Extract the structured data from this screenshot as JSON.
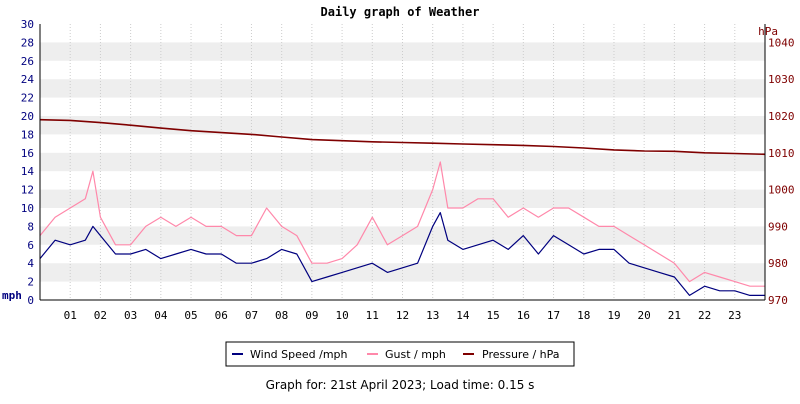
{
  "chart_data": {
    "type": "line",
    "title": "Daily graph of Weather",
    "footer": "Graph for: 21st April 2023; Load time: 0.15 s",
    "colors": {
      "wind": "#00007f",
      "gust": "#ff88aa",
      "pressure": "#7f0000",
      "grid_band": "#eeeeee",
      "grid_line": "#cccccc",
      "left_axis_text": "#00007f",
      "right_axis_text": "#7f0000"
    },
    "left_axis": {
      "label": "mph",
      "ylim": [
        0,
        30
      ],
      "ticks": [
        "0",
        "2",
        "4",
        "6",
        "8",
        "10",
        "12",
        "14",
        "16",
        "18",
        "20",
        "22",
        "24",
        "26",
        "28",
        "30"
      ]
    },
    "right_axis": {
      "label": "hPa",
      "ylim": [
        970,
        1045
      ],
      "ticks": [
        "970",
        "980",
        "990",
        "1000",
        "1010",
        "1020",
        "1030",
        "1040"
      ]
    },
    "x_axis": {
      "xlim": [
        0,
        24
      ],
      "ticks": [
        "01",
        "02",
        "03",
        "04",
        "05",
        "06",
        "07",
        "08",
        "09",
        "10",
        "11",
        "12",
        "13",
        "14",
        "15",
        "16",
        "17",
        "18",
        "19",
        "20",
        "21",
        "22",
        "23"
      ]
    },
    "grid": true,
    "legend_placement": "bottom-center",
    "series": [
      {
        "name": "Wind Speed /mph",
        "axis": "left",
        "color": "#00007f",
        "x": [
          0,
          0.5,
          1,
          1.5,
          1.75,
          2,
          2.5,
          3,
          3.5,
          4,
          4.5,
          5,
          5.5,
          6,
          6.5,
          7,
          7.5,
          8,
          8.5,
          9,
          9.5,
          10,
          10.5,
          11,
          11.5,
          12,
          12.5,
          13,
          13.25,
          13.5,
          14,
          14.5,
          15,
          15.5,
          16,
          16.5,
          17,
          17.5,
          18,
          18.5,
          19,
          19.5,
          20,
          20.5,
          21,
          21.5,
          22,
          22.5,
          23,
          23.5,
          24
        ],
        "values": [
          4.5,
          6.5,
          6,
          6.5,
          8,
          7,
          5,
          5,
          5.5,
          4.5,
          5,
          5.5,
          5,
          5,
          4,
          4,
          4.5,
          5.5,
          5,
          2,
          2.5,
          3,
          3.5,
          4,
          3,
          3.5,
          4,
          8,
          9.5,
          6.5,
          5.5,
          6,
          6.5,
          5.5,
          7,
          5,
          7,
          6,
          5,
          5.5,
          5.5,
          4,
          3.5,
          3,
          2.5,
          0.5,
          1.5,
          1,
          1,
          0.5,
          0.5
        ]
      },
      {
        "name": "Gust / mph",
        "axis": "left",
        "color": "#ff88aa",
        "x": [
          0,
          0.5,
          1,
          1.5,
          1.75,
          2,
          2.5,
          3,
          3.5,
          4,
          4.5,
          5,
          5.5,
          6,
          6.5,
          7,
          7.5,
          8,
          8.5,
          9,
          9.5,
          10,
          10.5,
          11,
          11.5,
          12,
          12.5,
          13,
          13.25,
          13.5,
          14,
          14.5,
          15,
          15.5,
          16,
          16.5,
          17,
          17.5,
          18,
          18.5,
          19,
          19.5,
          20,
          20.5,
          21,
          21.5,
          22,
          22.5,
          23,
          23.5,
          24
        ],
        "values": [
          7,
          9,
          10,
          11,
          14,
          9,
          6,
          6,
          8,
          9,
          8,
          9,
          8,
          8,
          7,
          7,
          10,
          8,
          7,
          4,
          4,
          4.5,
          6,
          9,
          6,
          7,
          8,
          12,
          15,
          10,
          10,
          11,
          11,
          9,
          10,
          9,
          10,
          10,
          9,
          8,
          8,
          7,
          6,
          5,
          4,
          2,
          3,
          2.5,
          2,
          1.5,
          1.5
        ]
      },
      {
        "name": "Pressure / hPa",
        "axis": "right",
        "color": "#7f0000",
        "x": [
          0,
          1,
          2,
          3,
          4,
          5,
          6,
          7,
          8,
          9,
          10,
          11,
          12,
          13,
          14,
          15,
          16,
          17,
          18,
          19,
          20,
          21,
          22,
          23,
          24
        ],
        "values": [
          1019,
          1018.8,
          1018.2,
          1017.5,
          1016.7,
          1016,
          1015.5,
          1015,
          1014.3,
          1013.6,
          1013.3,
          1013,
          1012.8,
          1012.6,
          1012.4,
          1012.2,
          1012,
          1011.7,
          1011.3,
          1010.8,
          1010.5,
          1010.4,
          1010,
          1009.8,
          1009.6
        ]
      }
    ]
  }
}
